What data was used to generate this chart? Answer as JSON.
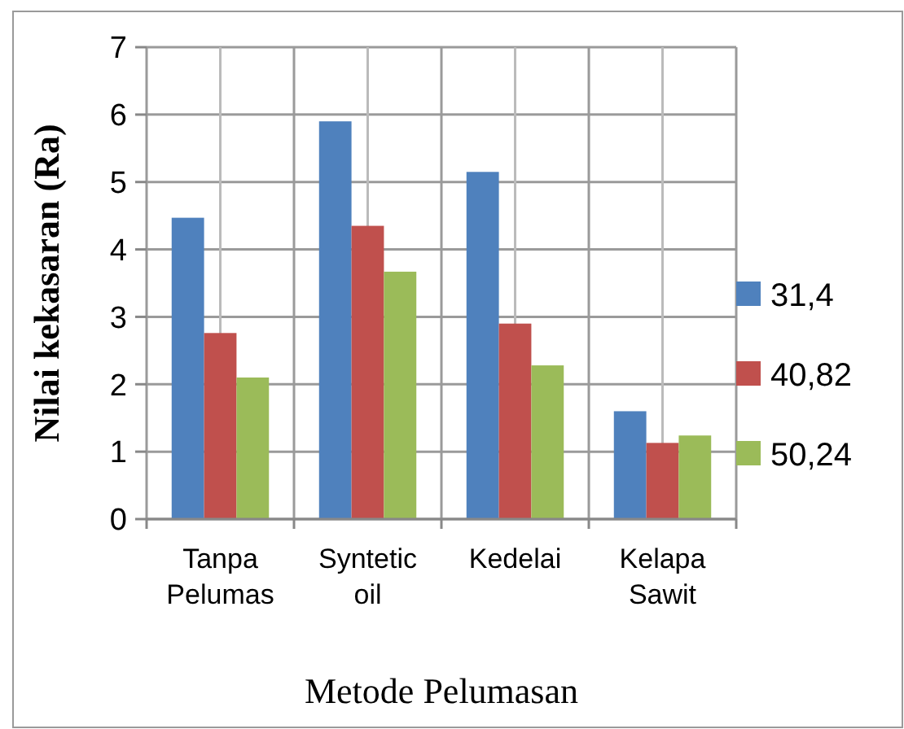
{
  "chart_data": {
    "type": "bar",
    "xlabel": "Metode Pelumasan",
    "ylabel": "Nilai kekasaran (Ra)",
    "categories": [
      "Tanpa Pelumas",
      "Syntetic oil",
      "Kedelai",
      "Kelapa Sawit"
    ],
    "series": [
      {
        "name": "31,4",
        "color": "#4f81bd",
        "values": [
          4.47,
          5.9,
          5.15,
          1.6
        ]
      },
      {
        "name": "40,82",
        "color": "#c0504d",
        "values": [
          2.76,
          4.35,
          2.9,
          1.13
        ]
      },
      {
        "name": "50,24",
        "color": "#9bbb59",
        "values": [
          2.1,
          3.67,
          2.28,
          1.24
        ]
      }
    ],
    "ylim": [
      0,
      7
    ],
    "yticks": [
      0,
      1,
      2,
      3,
      4,
      5,
      6,
      7
    ],
    "grid": true,
    "legend": "right"
  }
}
